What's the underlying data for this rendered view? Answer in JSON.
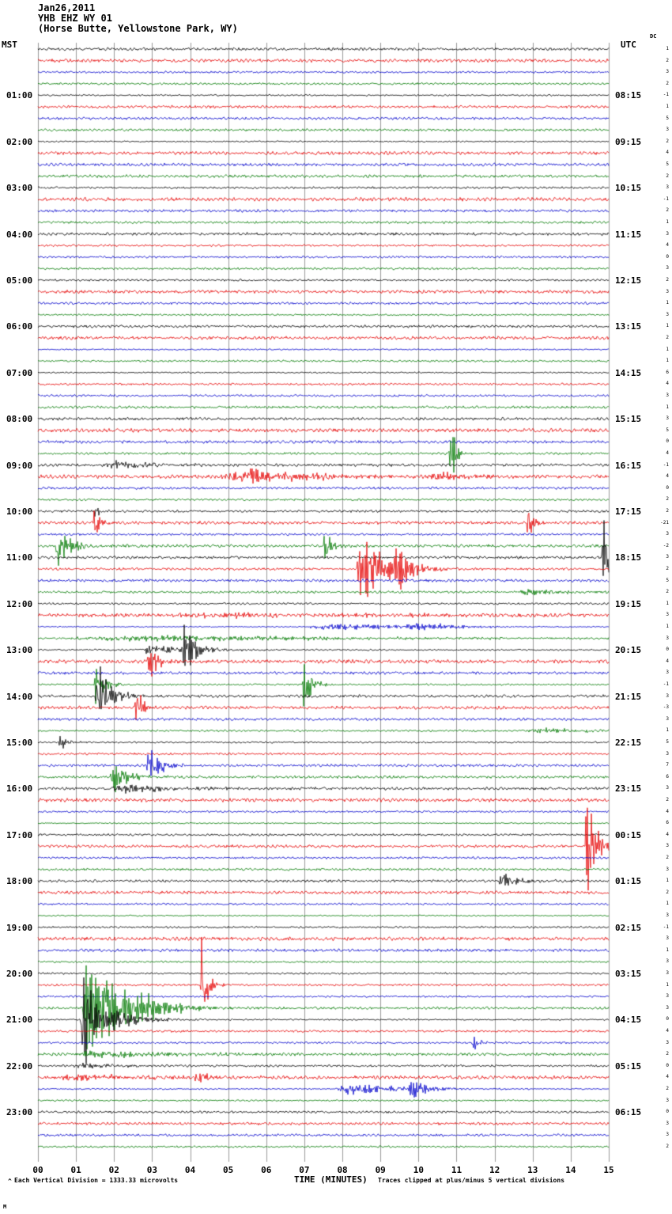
{
  "header": {
    "date": "Jan26,2011",
    "station": "YHB EHZ WY 01",
    "location": "(Horse Butte, Yellowstone Park, WY)",
    "left_axis_label": "MST",
    "right_axis_label": "UTC",
    "dc_column_label": "DC"
  },
  "footer": {
    "divider_mark": "^",
    "scale_note": "Each Vertical Division = 1333.33 microvolts",
    "xlabel": "TIME (MINUTES)",
    "clip_note": "Traces clipped at plus/minus 5 vertical divisions",
    "corner_mark": "M"
  },
  "axes": {
    "minute_labels": [
      "00",
      "01",
      "02",
      "03",
      "04",
      "05",
      "06",
      "07",
      "08",
      "09",
      "10",
      "11",
      "12",
      "13",
      "14",
      "15"
    ],
    "mst_labels": [
      "01:00",
      "02:00",
      "03:00",
      "04:00",
      "05:00",
      "06:00",
      "07:00",
      "08:00",
      "09:00",
      "10:00",
      "11:00",
      "12:00",
      "13:00",
      "14:00",
      "15:00",
      "16:00",
      "17:00",
      "18:00",
      "19:00",
      "20:00",
      "21:00",
      "22:00",
      "23:00"
    ],
    "utc_labels": [
      "08:15",
      "09:15",
      "10:15",
      "11:15",
      "12:15",
      "13:15",
      "14:15",
      "15:15",
      "16:15",
      "17:15",
      "18:15",
      "19:15",
      "20:15",
      "21:15",
      "22:15",
      "23:15",
      "00:15",
      "01:15",
      "02:15",
      "03:15",
      "04:15",
      "05:15",
      "06:15"
    ]
  },
  "chart_data": {
    "type": "line",
    "title": "Helicorder record YHB EHZ WY 01 (Horse Butte, Yellowstone Park, WY) Jan 26, 2011",
    "xlabel": "TIME (MINUTES)",
    "x_range": [
      0,
      15
    ],
    "rows": 96,
    "minutes_per_row": 15,
    "row_start_time_mst": "00:00",
    "microvolts_per_division": 1333.33,
    "clip_divisions": 5,
    "trace_colors": [
      "#000000",
      "#e60000",
      "#0000cc",
      "#007a00"
    ],
    "grid_color": "#9a9a9a",
    "noise_seed": 20110126,
    "events": [
      {
        "row": 35,
        "t": 10.8,
        "dur": 0.15,
        "amp": 30
      },
      {
        "row": 36,
        "t": 1.6,
        "dur": 2.0,
        "amp": 3.5
      },
      {
        "row": 37,
        "t": 4.6,
        "dur": 4.5,
        "amp": 4.5
      },
      {
        "row": 37,
        "t": 5.55,
        "dur": 0.3,
        "amp": 8
      },
      {
        "row": 37,
        "t": 10.3,
        "dur": 1.2,
        "amp": 3
      },
      {
        "row": 40,
        "t": 1.45,
        "dur": 0.15,
        "amp": 6
      },
      {
        "row": 41,
        "t": 1.45,
        "dur": 0.2,
        "amp": 12
      },
      {
        "row": 41,
        "t": 12.85,
        "dur": 0.12,
        "amp": 22
      },
      {
        "row": 43,
        "t": 0.45,
        "dur": 0.5,
        "amp": 20
      },
      {
        "row": 43,
        "t": 7.5,
        "dur": 0.25,
        "amp": 11
      },
      {
        "row": 44,
        "t": 14.8,
        "dur": 0.3,
        "amp": 30
      },
      {
        "row": 45,
        "t": 8.35,
        "dur": 1.1,
        "amp": 26
      },
      {
        "row": 45,
        "t": 9.35,
        "dur": 0.5,
        "amp": 20
      },
      {
        "row": 47,
        "t": 12.5,
        "dur": 2.0,
        "amp": 2.5
      },
      {
        "row": 49,
        "t": 3.0,
        "dur": 11.0,
        "amp": 1.5
      },
      {
        "row": 50,
        "t": 7.0,
        "dur": 4.5,
        "amp": 2.5
      },
      {
        "row": 50,
        "t": 9.6,
        "dur": 1.4,
        "amp": 3.5
      },
      {
        "row": 51,
        "t": 0.4,
        "dur": 14.0,
        "amp": 2.2
      },
      {
        "row": 52,
        "t": 2.6,
        "dur": 2.2,
        "amp": 3.5
      },
      {
        "row": 52,
        "t": 3.75,
        "dur": 0.45,
        "amp": 19
      },
      {
        "row": 53,
        "t": 2.85,
        "dur": 0.4,
        "amp": 15
      },
      {
        "row": 55,
        "t": 1.45,
        "dur": 0.4,
        "amp": 15
      },
      {
        "row": 55,
        "t": 6.95,
        "dur": 0.3,
        "amp": 21
      },
      {
        "row": 56,
        "t": 1.5,
        "dur": 0.5,
        "amp": 26
      },
      {
        "row": 57,
        "t": 2.55,
        "dur": 0.15,
        "amp": 26
      },
      {
        "row": 59,
        "t": 12.8,
        "dur": 2.2,
        "amp": 2.5
      },
      {
        "row": 60,
        "t": 0.55,
        "dur": 0.2,
        "amp": 8
      },
      {
        "row": 62,
        "t": 2.85,
        "dur": 0.5,
        "amp": 14
      },
      {
        "row": 63,
        "t": 1.9,
        "dur": 0.6,
        "amp": 12
      },
      {
        "row": 64,
        "t": 1.9,
        "dur": 2.4,
        "amp": 3.5
      },
      {
        "row": 69,
        "t": 14.38,
        "dur": 0.3,
        "amp": 55
      },
      {
        "row": 72,
        "t": 12.1,
        "dur": 0.7,
        "amp": 6
      },
      {
        "row": 81,
        "t": 4.25,
        "dur": 0.2,
        "amp": 38
      },
      {
        "row": 83,
        "t": 1.15,
        "dur": 1.3,
        "amp": 44
      },
      {
        "row": 83,
        "t": 2.5,
        "dur": 1.4,
        "amp": 10
      },
      {
        "row": 84,
        "t": 1.1,
        "dur": 0.5,
        "amp": 44
      },
      {
        "row": 84,
        "t": 1.7,
        "dur": 1.2,
        "amp": 9
      },
      {
        "row": 86,
        "t": 11.4,
        "dur": 0.15,
        "amp": 10
      },
      {
        "row": 87,
        "t": 0.8,
        "dur": 4.0,
        "amp": 2.8
      },
      {
        "row": 88,
        "t": 0.9,
        "dur": 1.5,
        "amp": 2.5
      },
      {
        "row": 89,
        "t": 0.4,
        "dur": 3.0,
        "amp": 2.2
      },
      {
        "row": 89,
        "t": 4.1,
        "dur": 0.6,
        "amp": 4.5
      },
      {
        "row": 90,
        "t": 7.8,
        "dur": 2.8,
        "amp": 4
      },
      {
        "row": 90,
        "t": 9.7,
        "dur": 0.8,
        "amp": 6
      }
    ],
    "dc_values": [
      1,
      2,
      3,
      2,
      -1,
      1,
      5,
      3,
      2,
      4,
      5,
      2,
      3,
      -1,
      2,
      1,
      3,
      4,
      0,
      3,
      2,
      3,
      1,
      3,
      1,
      2,
      1,
      1,
      6,
      4,
      3,
      1,
      3,
      5,
      0,
      4,
      -1,
      4,
      0,
      2,
      2,
      -21,
      3,
      -2,
      3,
      2,
      5,
      2,
      1,
      3,
      1,
      3,
      0,
      4,
      3,
      -1,
      3,
      -3,
      3,
      1,
      5,
      3,
      7,
      6,
      3,
      2,
      4,
      6,
      4,
      3,
      2,
      3,
      1,
      2,
      1,
      3,
      -1,
      3,
      1,
      3,
      3,
      1,
      3,
      3,
      0,
      4,
      3,
      2,
      0,
      4,
      2,
      3,
      0,
      3,
      3,
      2
    ]
  }
}
